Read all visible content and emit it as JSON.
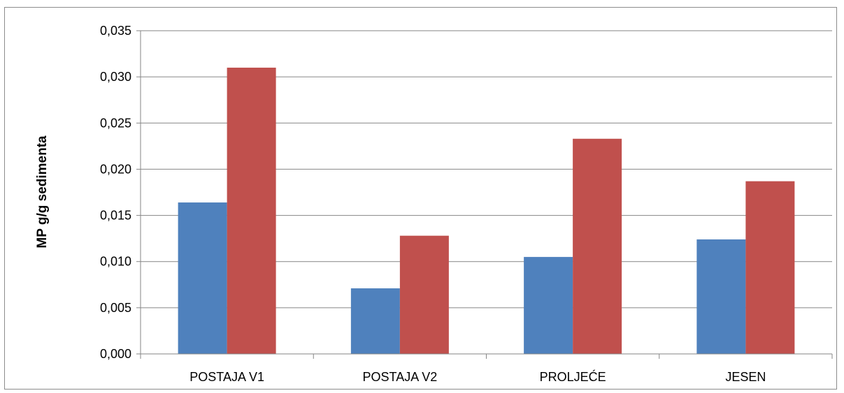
{
  "chart_data": {
    "type": "bar",
    "title": "",
    "xlabel": "",
    "ylabel": "MP g/g sedimenta",
    "categories": [
      "POSTAJA V1",
      "POSTAJA V2",
      "PROLJEĆE",
      "JESEN"
    ],
    "series": [
      {
        "color": "#4f81bd",
        "values": [
          0.0164,
          0.0071,
          0.0105,
          0.0124
        ]
      },
      {
        "color": "#c0504d",
        "values": [
          0.031,
          0.0128,
          0.0233,
          0.0187
        ]
      }
    ],
    "ylim": [
      0,
      0.035
    ],
    "yticks": [
      "0,000",
      "0,005",
      "0,010",
      "0,015",
      "0,020",
      "0,025",
      "0,030",
      "0,035"
    ],
    "grid": true,
    "legend": "none"
  }
}
